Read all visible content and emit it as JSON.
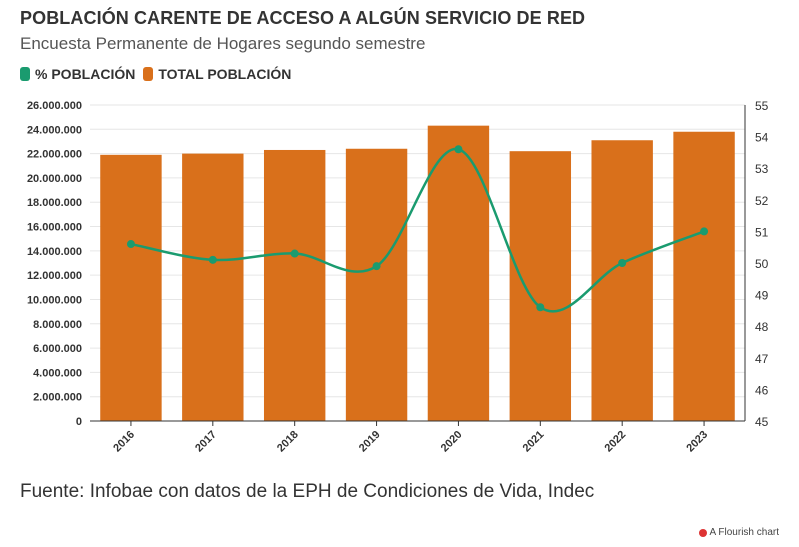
{
  "title": "POBLACIÓN CARENTE DE ACCESO A ALGÚN SERVICIO DE RED",
  "subtitle": "Encuesta Permanente de Hogares segundo semestre",
  "legend": [
    {
      "label": "% POBLACIÓN",
      "color": "#1a9b6f"
    },
    {
      "label": "TOTAL POBLACIÓN",
      "color": "#d9701b"
    }
  ],
  "source": "Fuente: Infobae con datos de la EPH de Condiciones de Vida, Indec",
  "credit": "A Flourish chart",
  "chart_data": {
    "type": "bar",
    "categories": [
      "2016",
      "2017",
      "2018",
      "2019",
      "2020",
      "2021",
      "2022",
      "2023"
    ],
    "series": [
      {
        "name": "TOTAL POBLACIÓN",
        "type": "bar",
        "axis": "left",
        "color": "#d9701b",
        "values": [
          21900000,
          22000000,
          22300000,
          22400000,
          24300000,
          22200000,
          23100000,
          23800000
        ]
      },
      {
        "name": "% POBLACIÓN",
        "type": "line",
        "axis": "right",
        "color": "#1a9b6f",
        "values": [
          50.6,
          50.1,
          50.3,
          49.9,
          53.6,
          48.6,
          50.0,
          51.0
        ]
      }
    ],
    "y_left": {
      "min": 0,
      "max": 26000000,
      "step": 2000000,
      "ticks": [
        "0",
        "2.000.000",
        "4.000.000",
        "6.000.000",
        "8.000.000",
        "10.000.000",
        "12.000.000",
        "14.000.000",
        "16.000.000",
        "18.000.000",
        "20.000.000",
        "22.000.000",
        "24.000.000",
        "26.000.000"
      ]
    },
    "y_right": {
      "min": 45,
      "max": 55,
      "step": 1,
      "ticks": [
        "45",
        "46",
        "47",
        "48",
        "49",
        "50",
        "51",
        "52",
        "53",
        "54",
        "55"
      ]
    },
    "grid": true
  }
}
